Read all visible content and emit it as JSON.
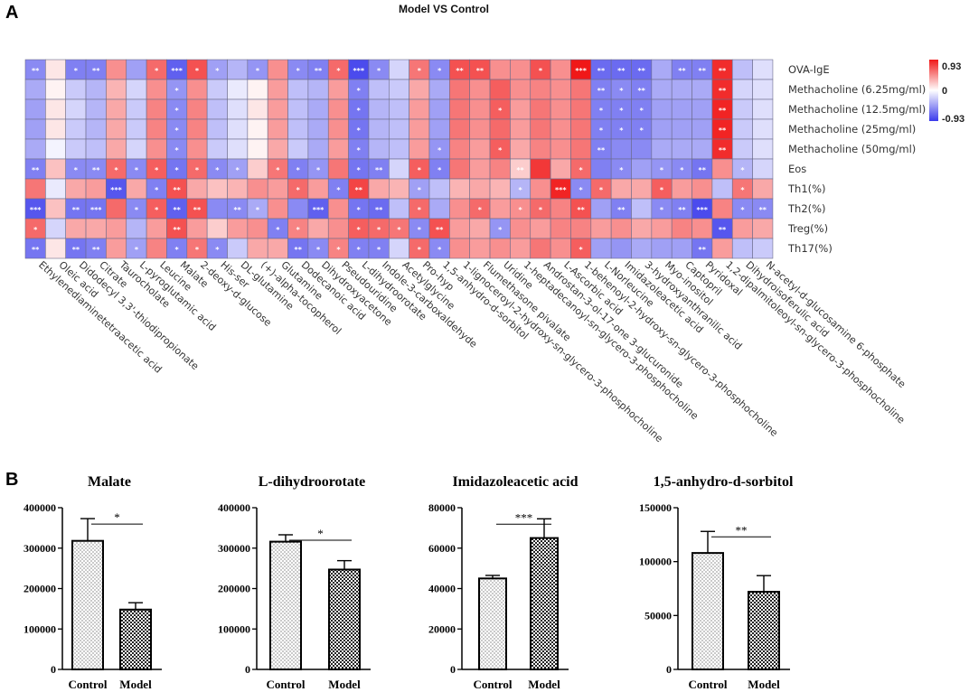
{
  "panel_labels": {
    "a": "A",
    "b": "B"
  },
  "colors": {
    "neg": "#3a3aeb",
    "mid": "#ffffff",
    "pos": "#f01818"
  },
  "chart_data": [
    {
      "type": "heatmap",
      "title": "Model VS Control",
      "rows": [
        "OVA-IgE",
        "Methacholine  (6.25mg/ml)",
        "Methacholine  (12.5mg/ml)",
        "Methacholine  (25mg/ml)",
        "Methacholine  (50mg/ml)",
        "Eos",
        "Th1(%)",
        "Th2(%)",
        "Treg(%)",
        "Th17(%)"
      ],
      "columns": [
        "Ethylenediaminetetraacetic acid",
        "Oleic acid",
        "Didodecyl 3,3'-thiodipropionate",
        "Citrate",
        "Taurocholate",
        "L-pyroglutamic acid",
        "Leucine",
        "Malate",
        "2-deoxy-d-glucose",
        "His-ser",
        "DL-glutamine",
        "(+)-alpha-tocopherol",
        "Glutamine",
        "Dodecanoic acid",
        "Dihydroxyacetone",
        "Pseudouridine",
        "L-dihydroorotate",
        "Indole-3-carboxaldehyde",
        "Acetylglycine",
        "Pro-hyp",
        "1,5-anhydro-d-sorbitol",
        "1-lignoceroyl-2-hydroxy-sn-glycero-3-phosphocholine",
        "Flumethasone pivalate",
        "Uridine",
        "1-heptadecanoyl-sn-glycero-3-phosphocholine",
        "Androstan-3-ol-17-one 3-glucuronide",
        "L-Ascorbic acid",
        "1-behenoyl-2-hydroxy-sn-glycero-3-phosphocholine",
        "L-Norleucine",
        "Imidazoleacetic acid",
        "3-hydroxyanthranilic acid",
        "Myo-inositol",
        "Captopril",
        "Pyridoxal",
        "1,2-dipalmitoleoyl-sn-glycero-3-phosphocholine",
        "Dihydroisoferulic acid",
        "N-acetyl-d-glucosamine 6-phosphate"
      ],
      "values": [
        [
          -0.55,
          0.1,
          -0.6,
          -0.6,
          0.45,
          -0.45,
          0.6,
          -0.75,
          0.7,
          -0.45,
          -0.35,
          -0.5,
          0.45,
          -0.55,
          -0.6,
          0.6,
          -0.85,
          -0.55,
          -0.2,
          0.55,
          -0.55,
          0.7,
          0.7,
          0.45,
          0.45,
          0.7,
          0.45,
          0.93,
          -0.7,
          -0.7,
          -0.7,
          -0.4,
          -0.6,
          -0.6,
          0.85,
          -0.3,
          -0.15
        ],
        [
          -0.4,
          0.05,
          -0.25,
          -0.35,
          0.3,
          -0.2,
          0.45,
          -0.5,
          0.45,
          -0.25,
          -0.1,
          0.05,
          0.4,
          -0.3,
          -0.35,
          0.4,
          -0.6,
          -0.3,
          -0.25,
          0.35,
          -0.4,
          0.55,
          0.45,
          0.65,
          0.45,
          0.5,
          0.45,
          0.55,
          -0.6,
          -0.55,
          -0.6,
          -0.4,
          -0.4,
          -0.4,
          0.85,
          -0.2,
          -0.15
        ],
        [
          -0.45,
          0.1,
          -0.2,
          -0.35,
          0.35,
          -0.25,
          0.5,
          -0.55,
          0.5,
          -0.3,
          -0.15,
          0.1,
          0.4,
          -0.3,
          -0.4,
          0.45,
          -0.65,
          -0.35,
          -0.3,
          0.4,
          -0.45,
          0.55,
          0.45,
          0.65,
          0.4,
          0.55,
          0.45,
          0.55,
          -0.6,
          -0.6,
          -0.6,
          -0.45,
          -0.45,
          -0.45,
          0.88,
          -0.25,
          -0.15
        ],
        [
          -0.45,
          0.1,
          -0.25,
          -0.35,
          0.35,
          -0.25,
          0.5,
          -0.55,
          0.5,
          -0.3,
          -0.15,
          0.05,
          0.4,
          -0.3,
          -0.4,
          0.45,
          -0.65,
          -0.35,
          -0.3,
          0.4,
          -0.45,
          0.55,
          0.45,
          0.6,
          0.4,
          0.55,
          0.45,
          0.55,
          -0.6,
          -0.6,
          -0.6,
          -0.45,
          -0.45,
          -0.45,
          0.88,
          -0.25,
          -0.15
        ],
        [
          -0.4,
          -0.05,
          -0.25,
          -0.3,
          0.35,
          -0.2,
          0.45,
          -0.55,
          0.45,
          -0.25,
          -0.15,
          0.05,
          0.35,
          -0.25,
          -0.4,
          0.4,
          -0.6,
          -0.35,
          -0.3,
          0.4,
          -0.5,
          0.5,
          0.4,
          0.65,
          0.35,
          0.5,
          0.45,
          0.55,
          -0.6,
          -0.55,
          -0.55,
          -0.4,
          -0.4,
          -0.4,
          0.85,
          -0.25,
          -0.15
        ],
        [
          -0.6,
          0.25,
          -0.55,
          -0.55,
          0.6,
          -0.55,
          0.65,
          -0.65,
          0.6,
          -0.55,
          -0.45,
          0.2,
          0.55,
          -0.6,
          -0.5,
          0.55,
          -0.65,
          -0.6,
          -0.2,
          0.65,
          -0.6,
          0.55,
          0.4,
          0.5,
          0.2,
          0.8,
          0.35,
          0.6,
          -0.6,
          -0.55,
          -0.45,
          -0.5,
          -0.55,
          -0.65,
          0.45,
          -0.35,
          -0.2
        ],
        [
          0.55,
          -0.1,
          0.35,
          0.4,
          -0.8,
          0.35,
          -0.6,
          0.7,
          0.35,
          0.25,
          0.3,
          0.45,
          0.4,
          0.6,
          0.4,
          -0.6,
          0.75,
          0.35,
          0.3,
          -0.45,
          -0.3,
          0.3,
          0.35,
          0.3,
          -0.35,
          0.45,
          0.88,
          -0.55,
          0.6,
          0.35,
          0.35,
          0.65,
          0.4,
          0.45,
          -0.3,
          0.55,
          0.35
        ],
        [
          -0.8,
          0.25,
          -0.65,
          -0.65,
          0.6,
          -0.55,
          0.65,
          -0.75,
          0.7,
          -0.55,
          -0.55,
          -0.4,
          0.45,
          -0.55,
          -0.75,
          0.45,
          -0.65,
          -0.7,
          -0.3,
          0.6,
          -0.4,
          0.45,
          0.6,
          0.4,
          0.45,
          0.6,
          0.5,
          0.7,
          -0.45,
          -0.6,
          -0.3,
          -0.55,
          -0.6,
          -0.85,
          0.5,
          -0.55,
          -0.55
        ],
        [
          0.6,
          -0.2,
          0.35,
          0.35,
          0.4,
          -0.35,
          0.4,
          0.7,
          0.4,
          0.2,
          0.4,
          0.45,
          -0.6,
          0.5,
          0.35,
          0.45,
          0.65,
          0.6,
          0.55,
          -0.55,
          0.7,
          0.4,
          0.35,
          -0.5,
          0.45,
          0.4,
          0.5,
          0.5,
          0.4,
          0.45,
          0.35,
          0.4,
          0.5,
          0.45,
          -0.8,
          0.4,
          0.35
        ],
        [
          -0.65,
          0.1,
          -0.65,
          -0.6,
          0.4,
          -0.45,
          0.5,
          -0.6,
          0.55,
          -0.55,
          -0.25,
          0.35,
          0.35,
          -0.65,
          -0.55,
          0.5,
          -0.6,
          -0.6,
          -0.2,
          0.6,
          -0.55,
          0.45,
          0.4,
          0.45,
          0.4,
          0.55,
          0.45,
          0.65,
          -0.45,
          -0.5,
          -0.4,
          -0.45,
          -0.45,
          -0.65,
          0.4,
          -0.3,
          -0.25
        ]
      ],
      "sig": [
        [
          "**",
          "",
          "*",
          "**",
          "",
          "",
          "*",
          "***",
          "*",
          "*",
          "",
          "*",
          "",
          "*",
          "**",
          "*",
          "***",
          "*",
          "",
          "*",
          "*",
          "**",
          "**",
          "",
          "",
          "*",
          "",
          "***",
          "**",
          "**",
          "**",
          "",
          "**",
          "**",
          "**",
          "",
          ""
        ],
        [
          "",
          "",
          "",
          "",
          "",
          "",
          "",
          "*",
          "",
          "",
          "",
          "",
          "",
          "",
          "",
          "",
          "*",
          "",
          "",
          "",
          "",
          "",
          "",
          "",
          "",
          "",
          "",
          "",
          "**",
          "*",
          "**",
          "",
          "",
          "",
          "**",
          "",
          ""
        ],
        [
          "",
          "",
          "",
          "",
          "",
          "",
          "",
          "*",
          "",
          "",
          "",
          "",
          "",
          "",
          "",
          "",
          "*",
          "",
          "",
          "",
          "",
          "",
          "",
          "*",
          "",
          "",
          "",
          "",
          "*",
          "*",
          "*",
          "",
          "",
          "",
          "**",
          "",
          ""
        ],
        [
          "",
          "",
          "",
          "",
          "",
          "",
          "",
          "*",
          "",
          "",
          "",
          "",
          "",
          "",
          "",
          "",
          "*",
          "",
          "",
          "",
          "",
          "",
          "",
          "",
          "",
          "",
          "",
          "",
          "*",
          "*",
          "*",
          "",
          "",
          "",
          "**",
          "",
          ""
        ],
        [
          "",
          "",
          "",
          "",
          "",
          "",
          "",
          "*",
          "",
          "",
          "",
          "",
          "",
          "",
          "",
          "",
          "*",
          "",
          "",
          "",
          "*",
          "",
          "",
          "*",
          "",
          "",
          "",
          "",
          "**",
          "",
          "",
          "",
          "",
          "",
          "**",
          "",
          ""
        ],
        [
          "**",
          "",
          "*",
          "**",
          "*",
          "*",
          "*",
          "*",
          "*",
          "*",
          "*",
          "",
          "*",
          "*",
          "*",
          "",
          "*",
          "**",
          "",
          "*",
          "*",
          "",
          "",
          "",
          "**",
          "",
          "",
          "*",
          "",
          "*",
          "",
          "*",
          "*",
          "**",
          "",
          "*",
          ""
        ],
        [
          "",
          "",
          "",
          "",
          "***",
          "",
          "*",
          "**",
          "",
          "",
          "",
          "",
          "",
          "*",
          "",
          "*",
          "**",
          "",
          "",
          "*",
          "",
          "",
          "",
          "",
          "*",
          "",
          "***",
          "*",
          "*",
          "",
          "",
          "*",
          "",
          "",
          "",
          "*",
          ""
        ],
        [
          "***",
          "",
          "**",
          "***",
          "",
          "*",
          "*",
          "**",
          "**",
          "",
          "**",
          "*",
          "",
          "",
          "***",
          "",
          "*",
          "**",
          "",
          "*",
          "",
          "",
          "*",
          "",
          "*",
          "*",
          "",
          "**",
          "",
          "**",
          "",
          "*",
          "**",
          "***",
          "",
          "*",
          "**"
        ],
        [
          "*",
          "",
          "",
          "",
          "",
          "",
          "",
          "**",
          "",
          "",
          "",
          "",
          "*",
          "*",
          "",
          "",
          "*",
          "*",
          "*",
          "*",
          "**",
          "",
          "",
          "*",
          "",
          "",
          "",
          "",
          "",
          "",
          "",
          "",
          "",
          "",
          "**",
          "",
          ""
        ],
        [
          "**",
          "",
          "**",
          "**",
          "",
          "*",
          "",
          "*",
          "*",
          "*",
          "",
          "",
          "",
          "**",
          "*",
          "*",
          "*",
          "*",
          "",
          "*",
          "*",
          "",
          "",
          "",
          "",
          "",
          "",
          "*",
          "",
          "",
          "",
          "",
          "",
          "**",
          "",
          "",
          ""
        ]
      ],
      "colorbar": {
        "max_label": "0.93",
        "mid_label": "0",
        "min_label": "-0.93",
        "range": [
          -0.93,
          0.93
        ]
      }
    },
    {
      "type": "bar",
      "title": "Malate",
      "categories": [
        "Control",
        "Model"
      ],
      "values": [
        318000,
        148000
      ],
      "errors": [
        55000,
        17000
      ],
      "ylim": [
        0,
        400000
      ],
      "yticks": [
        "0",
        "100000",
        "200000",
        "300000",
        "400000"
      ],
      "significance": "*"
    },
    {
      "type": "bar",
      "title": "L-dihydroorotate",
      "categories": [
        "Control",
        "Model"
      ],
      "values": [
        316000,
        247000
      ],
      "errors": [
        17000,
        22000
      ],
      "ylim": [
        0,
        400000
      ],
      "yticks": [
        "0",
        "100000",
        "200000",
        "300000",
        "400000"
      ],
      "significance": "*"
    },
    {
      "type": "bar",
      "title": "Imidazoleacetic acid",
      "categories": [
        "Control",
        "Model"
      ],
      "values": [
        45000,
        65000
      ],
      "errors": [
        1500,
        9500
      ],
      "ylim": [
        0,
        80000
      ],
      "yticks": [
        "0",
        "20000",
        "40000",
        "60000",
        "80000"
      ],
      "significance": "***"
    },
    {
      "type": "bar",
      "title": "1,5-anhydro-d-sorbitol",
      "categories": [
        "Control",
        "Model"
      ],
      "values": [
        108000,
        72000
      ],
      "errors": [
        20000,
        15000
      ],
      "ylim": [
        0,
        150000
      ],
      "yticks": [
        "0",
        "50000",
        "100000",
        "150000"
      ],
      "significance": "**"
    }
  ]
}
